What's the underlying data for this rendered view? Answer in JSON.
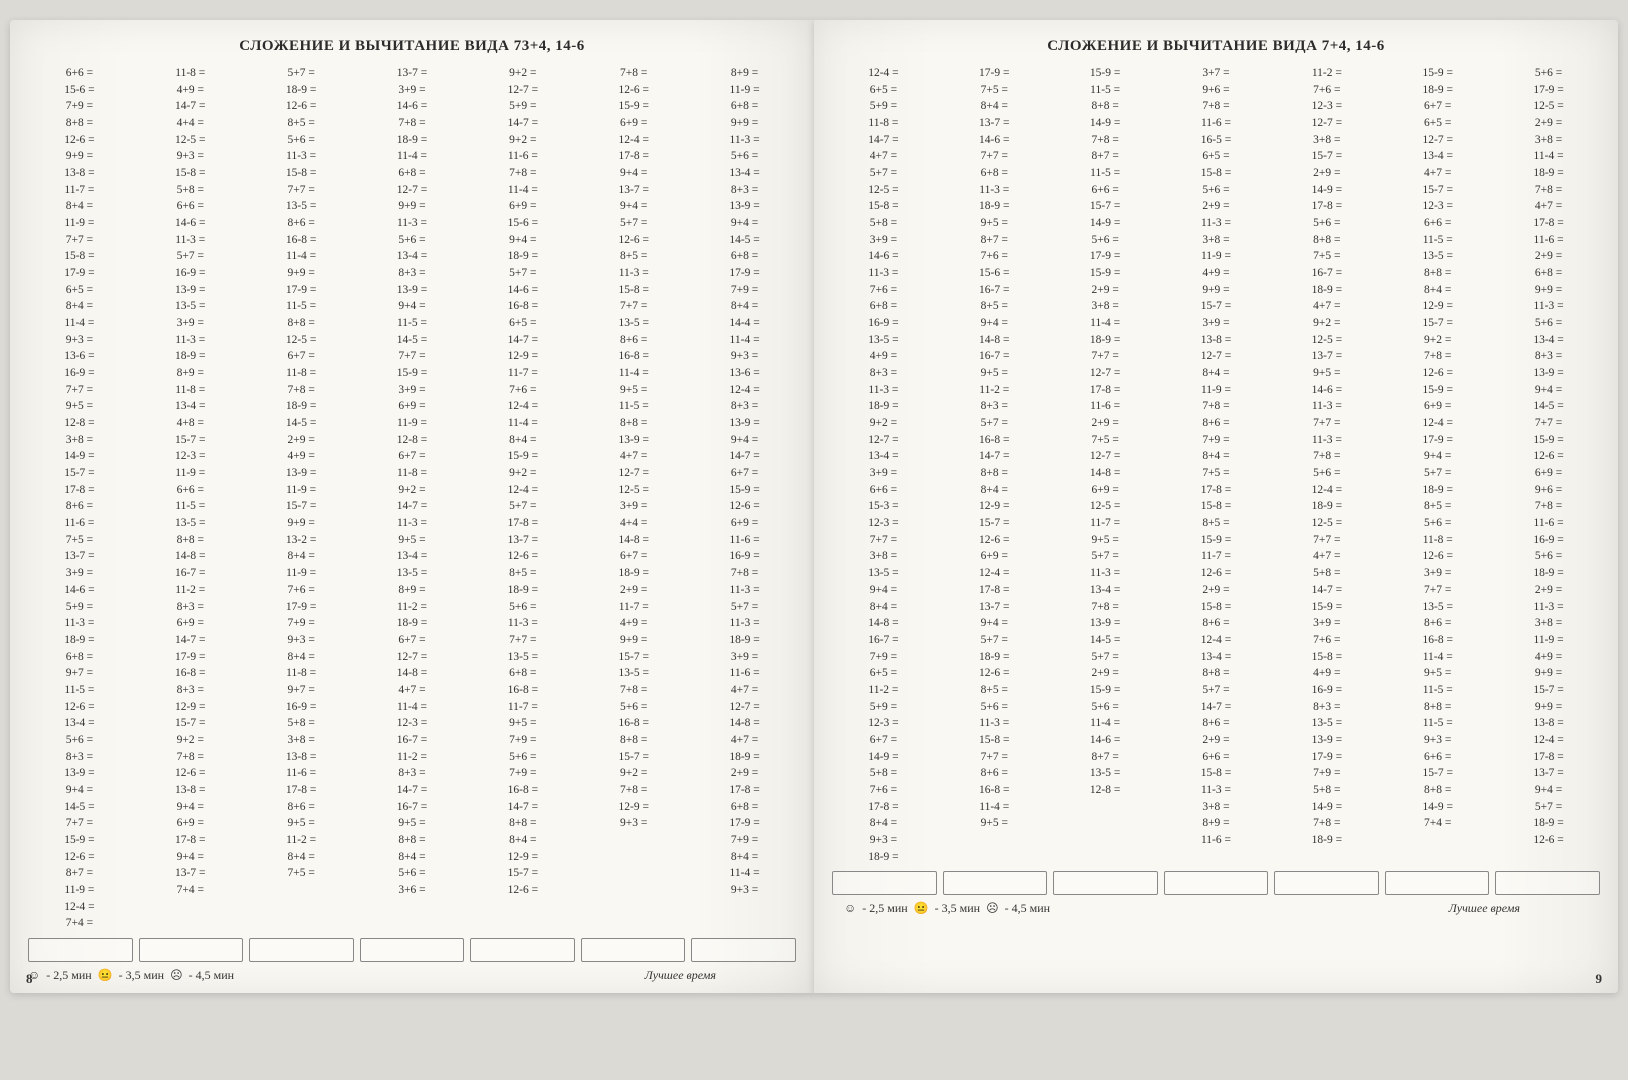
{
  "leftPage": {
    "title": "СЛОЖЕНИЕ И ВЫЧИТАНИЕ ВИДА 73+4, 14-6",
    "pageNumber": "8",
    "columns": [
      [
        "6+6",
        "15-6",
        "7+9",
        "8+8",
        "12-6",
        "9+9",
        "13-8",
        "11-7",
        "8+4",
        "11-9",
        "7+7",
        "15-8",
        "17-9",
        "6+5",
        "8+4",
        "11-4",
        "9+3",
        "13-6",
        "16-9",
        "7+7",
        "9+5",
        "12-8",
        "3+8",
        "14-9",
        "15-7",
        "17-8",
        "8+6",
        "11-6",
        "7+5",
        "13-7",
        "3+9",
        "14-6",
        "5+9",
        "11-3",
        "18-9",
        "6+8",
        "9+7",
        "11-5",
        "12-6",
        "13-4",
        "5+6",
        "8+3",
        "13-9",
        "9+4",
        "14-5",
        "7+7",
        "15-9",
        "12-6",
        "8+7",
        "11-9",
        "12-4",
        "7+4"
      ],
      [
        "11-8",
        "4+9",
        "14-7",
        "4+4",
        "12-5",
        "9+3",
        "15-8",
        "5+8",
        "6+6",
        "14-6",
        "11-3",
        "5+7",
        "16-9",
        "13-9",
        "13-5",
        "3+9",
        "11-3",
        "18-9",
        "8+9",
        "11-8",
        "13-4",
        "4+8",
        "15-7",
        "12-3",
        "11-9",
        "6+6",
        "11-5",
        "13-5",
        "8+8",
        "14-8",
        "16-7",
        "11-2",
        "8+3",
        "6+9",
        "14-7",
        "17-9",
        "16-8",
        "8+3",
        "12-9",
        "15-7",
        "9+2",
        "7+8",
        "12-6",
        "13-8",
        "9+4",
        "6+9",
        "17-8",
        "9+4",
        "13-7",
        "7+4"
      ],
      [
        "5+7",
        "18-9",
        "12-6",
        "8+5",
        "5+6",
        "11-3",
        "15-8",
        "7+7",
        "13-5",
        "8+6",
        "16-8",
        "11-4",
        "9+9",
        "17-9",
        "11-5",
        "8+8",
        "12-5",
        "6+7",
        "11-8",
        "7+8",
        "18-9",
        "14-5",
        "2+9",
        "4+9",
        "13-9",
        "11-9",
        "15-7",
        "9+9",
        "13-2",
        "8+4",
        "11-9",
        "7+6",
        "17-9",
        "7+9",
        "9+3",
        "8+4",
        "11-8",
        "9+7",
        "16-9",
        "5+8",
        "3+8",
        "13-8",
        "11-6",
        "17-8",
        "8+6",
        "9+5",
        "11-2",
        "8+4",
        "7+5"
      ],
      [
        "13-7",
        "3+9",
        "14-6",
        "7+8",
        "18-9",
        "11-4",
        "6+8",
        "12-7",
        "9+9",
        "11-3",
        "5+6",
        "13-4",
        "8+3",
        "13-9",
        "9+4",
        "11-5",
        "14-5",
        "7+7",
        "15-9",
        "3+9",
        "6+9",
        "11-9",
        "12-8",
        "6+7",
        "11-8",
        "9+2",
        "14-7",
        "11-3",
        "9+5",
        "13-4",
        "13-5",
        "8+9",
        "11-2",
        "18-9",
        "6+7",
        "12-7",
        "14-8",
        "4+7",
        "11-4",
        "12-3",
        "16-7",
        "11-2",
        "8+3",
        "14-7",
        "16-7",
        "9+5",
        "8+8",
        "8+4",
        "5+6",
        "3+6"
      ],
      [
        "9+2",
        "12-7",
        "5+9",
        "14-7",
        "9+2",
        "11-6",
        "7+8",
        "11-4",
        "6+9",
        "15-6",
        "9+4",
        "18-9",
        "5+7",
        "14-6",
        "16-8",
        "6+5",
        "14-7",
        "12-9",
        "11-7",
        "7+6",
        "12-4",
        "11-4",
        "8+4",
        "15-9",
        "9+2",
        "12-4",
        "5+7",
        "17-8",
        "13-7",
        "12-6",
        "8+5",
        "18-9",
        "5+6",
        "11-3",
        "7+7",
        "13-5",
        "6+8",
        "16-8",
        "11-7",
        "9+5",
        "7+9",
        "5+6",
        "7+9",
        "16-8",
        "14-7",
        "8+8",
        "8+4",
        "12-9",
        "15-7",
        "12-6"
      ],
      [
        "7+8",
        "12-6",
        "15-9",
        "6+9",
        "12-4",
        "17-8",
        "9+4",
        "13-7",
        "9+4",
        "5+7",
        "12-6",
        "8+5",
        "11-3",
        "15-8",
        "7+7",
        "13-5",
        "8+6",
        "16-8",
        "11-4",
        "9+5",
        "11-5",
        "8+8",
        "13-9",
        "4+7",
        "12-7",
        "12-5",
        "3+9",
        "4+4",
        "14-8",
        "6+7",
        "18-9",
        "2+9",
        "11-7",
        "4+9",
        "9+9",
        "15-7",
        "13-5",
        "7+8",
        "5+6",
        "16-8",
        "8+8",
        "15-7",
        "9+2",
        "7+8",
        "12-9",
        "9+3"
      ],
      [
        "8+9",
        "11-9",
        "6+8",
        "9+9",
        "11-3",
        "5+6",
        "13-4",
        "8+3",
        "13-9",
        "9+4",
        "14-5",
        "6+8",
        "17-9",
        "7+9",
        "8+4",
        "14-4",
        "11-4",
        "9+3",
        "13-6",
        "12-4",
        "8+3",
        "13-9",
        "9+4",
        "14-7",
        "6+7",
        "15-9",
        "12-6",
        "6+9",
        "11-6",
        "16-9",
        "7+8",
        "11-3",
        "5+7",
        "11-3",
        "18-9",
        "3+9",
        "11-6",
        "4+7",
        "12-7",
        "14-8",
        "4+7",
        "18-9",
        "2+9",
        "17-8",
        "6+8",
        "17-9",
        "7+9",
        "8+4",
        "11-4",
        "9+3"
      ]
    ],
    "timeLabels": {
      "good": "- 2,5 мин",
      "ok": "- 3,5 мин",
      "bad": "- 4,5 мин",
      "best": "Лучшее время"
    }
  },
  "rightPage": {
    "title": "СЛОЖЕНИЕ И ВЫЧИТАНИЕ ВИДА 7+4, 14-6",
    "pageNumber": "9",
    "columns": [
      [
        "12-4",
        "6+5",
        "5+9",
        "11-8",
        "14-7",
        "4+7",
        "5+7",
        "12-5",
        "15-8",
        "5+8",
        "3+9",
        "14-6",
        "11-3",
        "7+6",
        "6+8",
        "16-9",
        "13-5",
        "4+9",
        "8+3",
        "11-3",
        "18-9",
        "9+2",
        "12-7",
        "13-4",
        "3+9",
        "6+6",
        "15-3",
        "12-3",
        "7+7",
        "3+8",
        "13-5",
        "9+4",
        "8+4",
        "14-8",
        "16-7",
        "7+9",
        "6+5",
        "11-2",
        "5+9",
        "12-3",
        "6+7",
        "14-9",
        "5+8",
        "7+6",
        "17-8",
        "8+4",
        "9+3",
        "18-9"
      ],
      [
        "17-9",
        "7+5",
        "8+4",
        "13-7",
        "14-6",
        "7+7",
        "6+8",
        "11-3",
        "18-9",
        "9+5",
        "8+7",
        "7+6",
        "15-6",
        "16-7",
        "8+5",
        "9+4",
        "14-8",
        "16-7",
        "9+5",
        "11-2",
        "8+3",
        "5+7",
        "16-8",
        "14-7",
        "8+8",
        "8+4",
        "12-9",
        "15-7",
        "12-6",
        "6+9",
        "12-4",
        "17-8",
        "13-7",
        "9+4",
        "5+7",
        "18-9",
        "12-6",
        "8+5",
        "5+6",
        "11-3",
        "15-8",
        "7+7",
        "8+6",
        "16-8",
        "11-4",
        "9+5"
      ],
      [
        "15-9",
        "11-5",
        "8+8",
        "14-9",
        "7+8",
        "8+7",
        "11-5",
        "6+6",
        "15-7",
        "14-9",
        "5+6",
        "17-9",
        "15-9",
        "2+9",
        "3+8",
        "11-4",
        "18-9",
        "7+7",
        "12-7",
        "17-8",
        "11-6",
        "2+9",
        "7+5",
        "12-7",
        "14-8",
        "6+9",
        "12-5",
        "11-7",
        "9+5",
        "5+7",
        "11-3",
        "13-4",
        "7+8",
        "13-9",
        "14-5",
        "5+7",
        "2+9",
        "15-9",
        "5+6",
        "11-4",
        "14-6",
        "8+7",
        "13-5",
        "12-8"
      ],
      [
        "3+7",
        "9+6",
        "7+8",
        "11-6",
        "16-5",
        "6+5",
        "15-8",
        "5+6",
        "2+9",
        "11-3",
        "3+8",
        "11-9",
        "4+9",
        "9+9",
        "15-7",
        "3+9",
        "13-8",
        "12-7",
        "8+4",
        "11-9",
        "7+8",
        "8+6",
        "7+9",
        "8+4",
        "7+5",
        "17-8",
        "15-8",
        "8+5",
        "15-9",
        "11-7",
        "12-6",
        "2+9",
        "15-8",
        "8+6",
        "12-4",
        "13-4",
        "8+8",
        "5+7",
        "14-7",
        "8+6",
        "2+9",
        "6+6",
        "15-8",
        "11-3",
        "3+8",
        "8+9",
        "11-6"
      ],
      [
        "11-2",
        "7+6",
        "12-3",
        "12-7",
        "3+8",
        "15-7",
        "2+9",
        "14-9",
        "17-8",
        "5+6",
        "8+8",
        "7+5",
        "16-7",
        "18-9",
        "4+7",
        "9+2",
        "12-5",
        "13-7",
        "9+5",
        "14-6",
        "11-3",
        "7+7",
        "11-3",
        "7+8",
        "5+6",
        "12-4",
        "18-9",
        "12-5",
        "7+7",
        "4+7",
        "5+8",
        "14-7",
        "15-9",
        "3+9",
        "7+6",
        "15-8",
        "4+9",
        "16-9",
        "8+3",
        "13-5",
        "13-9",
        "17-9",
        "7+9",
        "5+8",
        "14-9",
        "7+8",
        "18-9"
      ],
      [
        "15-9",
        "18-9",
        "6+7",
        "6+5",
        "12-7",
        "13-4",
        "4+7",
        "15-7",
        "12-3",
        "6+6",
        "11-5",
        "13-5",
        "8+8",
        "8+4",
        "12-9",
        "15-7",
        "9+2",
        "7+8",
        "12-6",
        "15-9",
        "6+9",
        "12-4",
        "17-9",
        "9+4",
        "5+7",
        "18-9",
        "8+5",
        "5+6",
        "11-8",
        "12-6",
        "3+9",
        "7+7",
        "13-5",
        "8+6",
        "16-8",
        "11-4",
        "9+5",
        "11-5",
        "8+8",
        "11-5",
        "9+3",
        "6+6",
        "15-7",
        "8+8",
        "14-9",
        "7+4"
      ],
      [
        "5+6",
        "17-9",
        "12-5",
        "2+9",
        "3+8",
        "11-4",
        "18-9",
        "7+8",
        "4+7",
        "17-8",
        "11-6",
        "2+9",
        "6+8",
        "9+9",
        "11-3",
        "5+6",
        "13-4",
        "8+3",
        "13-9",
        "9+4",
        "14-5",
        "7+7",
        "15-9",
        "12-6",
        "6+9",
        "9+6",
        "7+8",
        "11-6",
        "16-9",
        "5+6",
        "18-9",
        "2+9",
        "11-3",
        "3+8",
        "11-9",
        "4+9",
        "9+9",
        "15-7",
        "9+9",
        "13-8",
        "12-4",
        "17-8",
        "13-7",
        "9+4",
        "5+7",
        "18-9",
        "12-6"
      ]
    ],
    "timeLabels": {
      "good": "- 2,5 мин",
      "ok": "- 3,5 мин",
      "bad": "- 4,5 мин",
      "best": "Лучшее время"
    }
  }
}
